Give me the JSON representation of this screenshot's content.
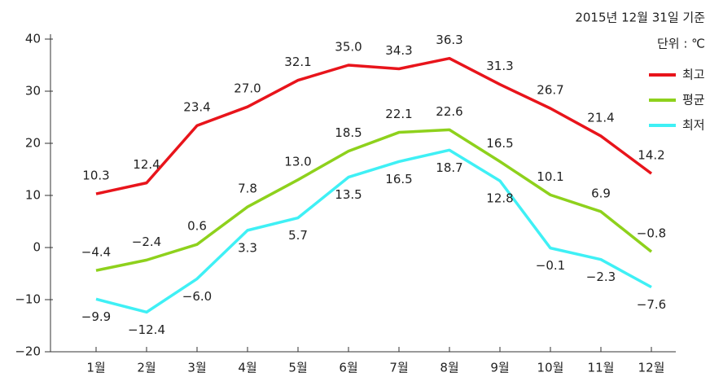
{
  "chart_data": {
    "type": "line",
    "annotations": [
      "2015년 12월 31일 기준",
      "단위 : ℃"
    ],
    "categories": [
      "1월",
      "2월",
      "3월",
      "4월",
      "5월",
      "6월",
      "7월",
      "8월",
      "9월",
      "10월",
      "11월",
      "12월"
    ],
    "series": [
      {
        "name": "최고",
        "color": "#e8141b",
        "values": [
          10.3,
          12.4,
          23.4,
          27.0,
          32.1,
          35.0,
          34.3,
          36.3,
          31.3,
          26.7,
          21.4,
          14.2
        ],
        "value_labels": [
          "10.3",
          "12.4",
          "23.4",
          "27.0",
          "32.1",
          "35.0",
          "34.3",
          "36.3",
          "31.3",
          "26.7",
          "21.4",
          "14.2"
        ]
      },
      {
        "name": "평균",
        "color": "#8ed11c",
        "values": [
          -4.4,
          -2.4,
          0.6,
          7.8,
          13.0,
          18.5,
          22.1,
          22.6,
          16.5,
          10.1,
          6.9,
          -0.8
        ],
        "value_labels": [
          "−4.4",
          "−2.4",
          "0.6",
          "7.8",
          "13.0",
          "18.5",
          "22.1",
          "22.6",
          "16.5",
          "10.1",
          "6.9",
          "−0.8"
        ]
      },
      {
        "name": "최저",
        "color": "#3ff0f5",
        "values": [
          -9.9,
          -12.4,
          -6.0,
          3.3,
          5.7,
          13.5,
          16.5,
          18.7,
          12.8,
          -0.1,
          -2.3,
          -7.6
        ],
        "value_labels": [
          "−9.9",
          "−12.4",
          "−6.0",
          "3.3",
          "5.7",
          "13.5",
          "16.5",
          "18.7",
          "12.8",
          "−0.1",
          "−2.3",
          "−7.6"
        ]
      }
    ],
    "ylim": [
      -20,
      40
    ],
    "yticks": [
      {
        "value": -20,
        "label": "−20"
      },
      {
        "value": -10,
        "label": "−10"
      },
      0,
      10,
      20,
      30,
      40
    ],
    "legend": "upper right"
  }
}
